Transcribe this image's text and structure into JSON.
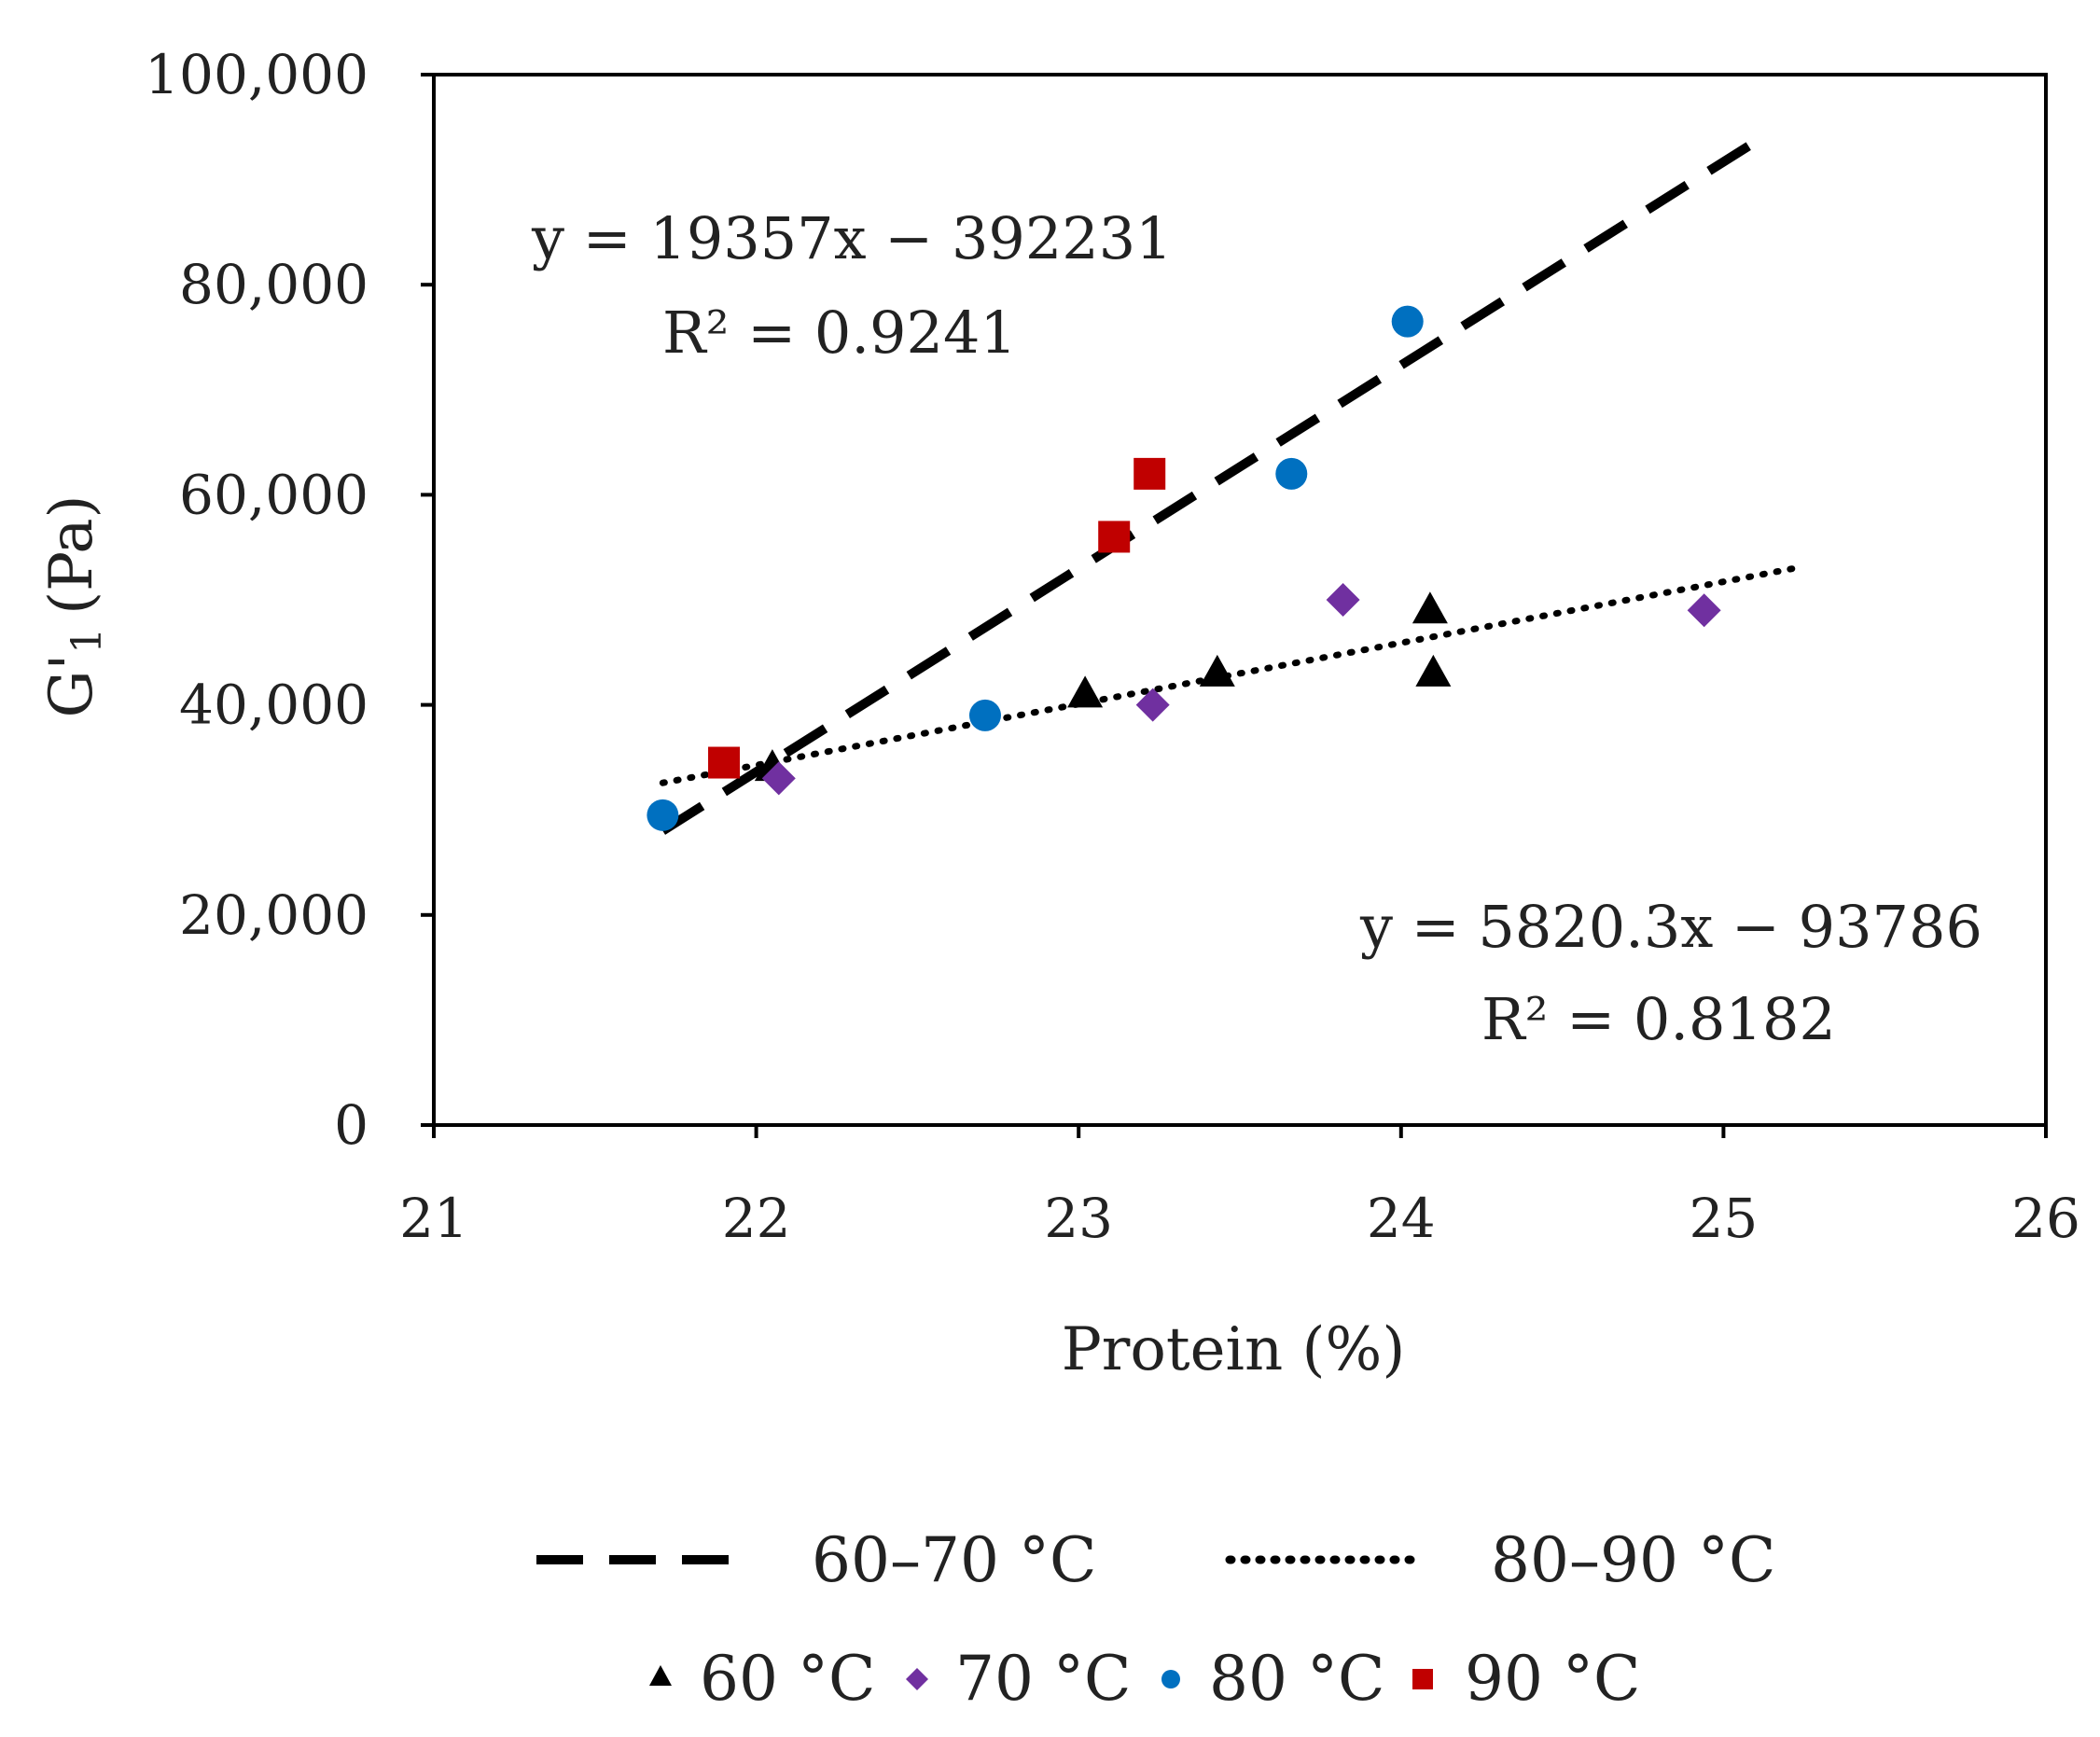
{
  "chart_data": {
    "type": "scatter",
    "title": "",
    "xlabel": "Protein (%)",
    "ylabel_main": "G'",
    "ylabel_sub": "1",
    "ylabel_unit": "(Pa)",
    "xlim": [
      21,
      26
    ],
    "ylim": [
      0,
      100000
    ],
    "x_ticks": [
      21,
      22,
      23,
      24,
      25,
      26
    ],
    "y_ticks": [
      0,
      20000,
      40000,
      60000,
      80000,
      100000
    ],
    "x_tick_labels": [
      "21",
      "22",
      "23",
      "24",
      "25",
      "26"
    ],
    "y_tick_labels": [
      "0",
      "20,000",
      "40,000",
      "60,000",
      "80,000",
      "100,000"
    ],
    "grid": false,
    "series": [
      {
        "name": "60 °C",
        "marker": "triangle",
        "color": "#000000",
        "points": [
          [
            22.05,
            34000
          ],
          [
            23.02,
            41000
          ],
          [
            23.43,
            43000
          ],
          [
            24.09,
            49000
          ],
          [
            24.1,
            43000
          ]
        ]
      },
      {
        "name": "70 °C",
        "marker": "diamond",
        "color": "#7030a0",
        "points": [
          [
            22.07,
            33000
          ],
          [
            23.23,
            40000
          ],
          [
            23.82,
            50000
          ],
          [
            24.94,
            49000
          ]
        ]
      },
      {
        "name": "80 °C",
        "marker": "circle",
        "color": "#0070c0",
        "points": [
          [
            21.71,
            29500
          ],
          [
            22.71,
            39000
          ],
          [
            23.66,
            62000
          ],
          [
            24.02,
            76500
          ]
        ]
      },
      {
        "name": "90 °C",
        "marker": "square",
        "color": "#c00000",
        "points": [
          [
            21.9,
            34500
          ],
          [
            23.11,
            56000
          ],
          [
            23.22,
            62000
          ]
        ]
      }
    ],
    "trendlines": [
      {
        "name": "60–70 °C",
        "style": "dashed",
        "slope": 19357,
        "intercept": -392231,
        "x_range": [
          21.71,
          25.11
        ],
        "equation": "y = 19357x − 392231",
        "r2": "R² = 0.9241"
      },
      {
        "name": "80–90 °C",
        "style": "dotted",
        "slope": 5820.3,
        "intercept": -93786,
        "x_range": [
          21.71,
          25.22
        ],
        "equation": "y = 5820.3x − 93786",
        "r2": "R² = 0.8182"
      }
    ],
    "legend": {
      "placement": "bottom",
      "lines": [
        "60–70 °C",
        "80–90 °C"
      ],
      "markers": [
        "60 °C",
        "70 °C",
        "80 °C",
        "90 °C"
      ]
    }
  }
}
